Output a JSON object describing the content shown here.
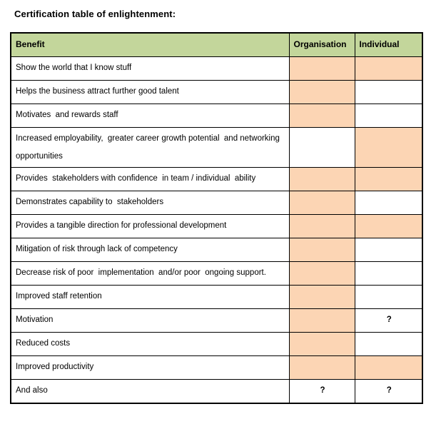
{
  "title": "Certification table of enlightenment:",
  "colors": {
    "header_bg": "#c3d69b",
    "filled_bg": "#fcd5b4",
    "border": "#000000"
  },
  "table": {
    "headers": [
      "Benefit",
      "Organisation",
      "Individual"
    ],
    "legend": {
      "filled_meaning": "benefit applies (shaded cell)",
      "question_mark": "?"
    },
    "rows": [
      {
        "benefit": "Show the world that I know stuff",
        "organisation": "filled",
        "individual": "filled"
      },
      {
        "benefit": "Helps the business attract further good talent",
        "organisation": "filled",
        "individual": "empty"
      },
      {
        "benefit": "Motivates  and rewards staff",
        "organisation": "filled",
        "individual": "empty"
      },
      {
        "benefit": "Increased employability,  greater career growth potential  and networking  opportunities",
        "organisation": "empty",
        "individual": "filled"
      },
      {
        "benefit": "Provides  stakeholders with confidence  in team / individual  ability",
        "organisation": "filled",
        "individual": "filled"
      },
      {
        "benefit": "Demonstrates capability to  stakeholders",
        "organisation": "filled",
        "individual": "empty"
      },
      {
        "benefit": "Provides a tangible direction for professional development",
        "organisation": "filled",
        "individual": "filled"
      },
      {
        "benefit": "Mitigation of risk through lack of competency",
        "organisation": "filled",
        "individual": "empty"
      },
      {
        "benefit": "Decrease risk of poor  implementation  and/or poor  ongoing support.",
        "organisation": "filled",
        "individual": "empty"
      },
      {
        "benefit": "Improved staff retention",
        "organisation": "filled",
        "individual": "empty"
      },
      {
        "benefit": "Motivation",
        "organisation": "filled",
        "individual": "?"
      },
      {
        "benefit": "Reduced costs",
        "organisation": "filled",
        "individual": "empty"
      },
      {
        "benefit": "Improved productivity",
        "organisation": "filled",
        "individual": "filled"
      },
      {
        "benefit": "And also",
        "organisation": "?",
        "individual": "?"
      }
    ]
  }
}
